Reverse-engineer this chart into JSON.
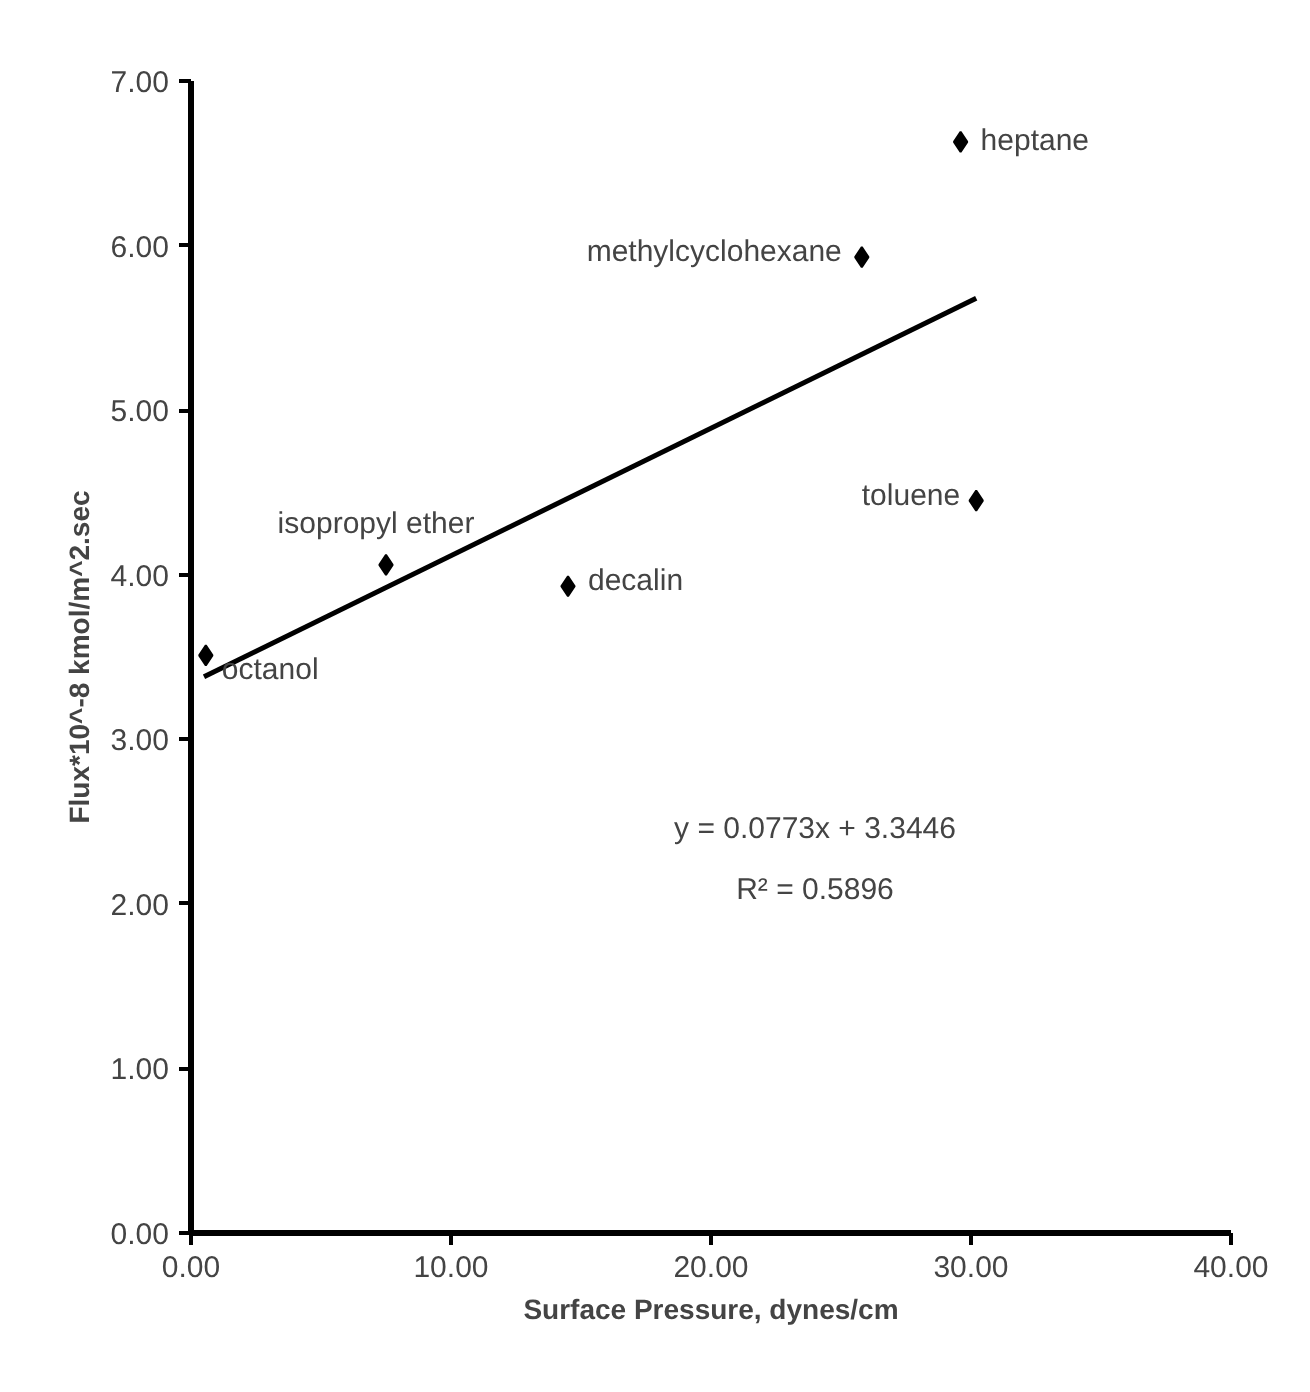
{
  "chart_data": {
    "type": "scatter",
    "xlabel": "Surface Pressure, dynes/cm",
    "ylabel": "Flux*10^-8 kmol/m^2.sec",
    "xlim": [
      0,
      40
    ],
    "ylim": [
      0,
      7
    ],
    "xticks": [
      {
        "value": 0,
        "label": "0.00"
      },
      {
        "value": 10,
        "label": "10.00"
      },
      {
        "value": 20,
        "label": "20.00"
      },
      {
        "value": 30,
        "label": "30.00"
      },
      {
        "value": 40,
        "label": "40.00"
      }
    ],
    "yticks": [
      {
        "value": 0,
        "label": "0.00"
      },
      {
        "value": 1,
        "label": "1.00"
      },
      {
        "value": 2,
        "label": "2.00"
      },
      {
        "value": 3,
        "label": "3.00"
      },
      {
        "value": 4,
        "label": "4.00"
      },
      {
        "value": 5,
        "label": "5.00"
      },
      {
        "value": 6,
        "label": "6.00"
      },
      {
        "value": 7,
        "label": "7.00"
      }
    ],
    "grid": false,
    "marker": "diamond",
    "series": [
      {
        "color": "#000000",
        "x": [
          0.57,
          7.5,
          14.5,
          25.8,
          29.6,
          30.2
        ],
        "values": [
          3.51,
          4.06,
          3.93,
          5.93,
          6.63,
          4.45
        ]
      },
      {
        "type": "line",
        "color": "#000000",
        "x": [
          0.5,
          30.2
        ],
        "values": [
          3.38,
          5.68
        ],
        "line_style": "solid",
        "marker": "none"
      }
    ],
    "annotations": [
      {
        "text": "octanol",
        "x": 0.57,
        "y": 3.51
      },
      {
        "text": "isopropyl ether",
        "x": 7.5,
        "y": 4.06
      },
      {
        "text": "decalin",
        "x": 14.5,
        "y": 3.93
      },
      {
        "text": "methylcyclohexane",
        "x": 25.8,
        "y": 5.93
      },
      {
        "text": "heptane",
        "x": 29.6,
        "y": 6.63
      },
      {
        "text": "toluene",
        "x": 30.2,
        "y": 4.45
      },
      "y = 0.0773x + 3.3446",
      "R² = 0.5896"
    ]
  }
}
